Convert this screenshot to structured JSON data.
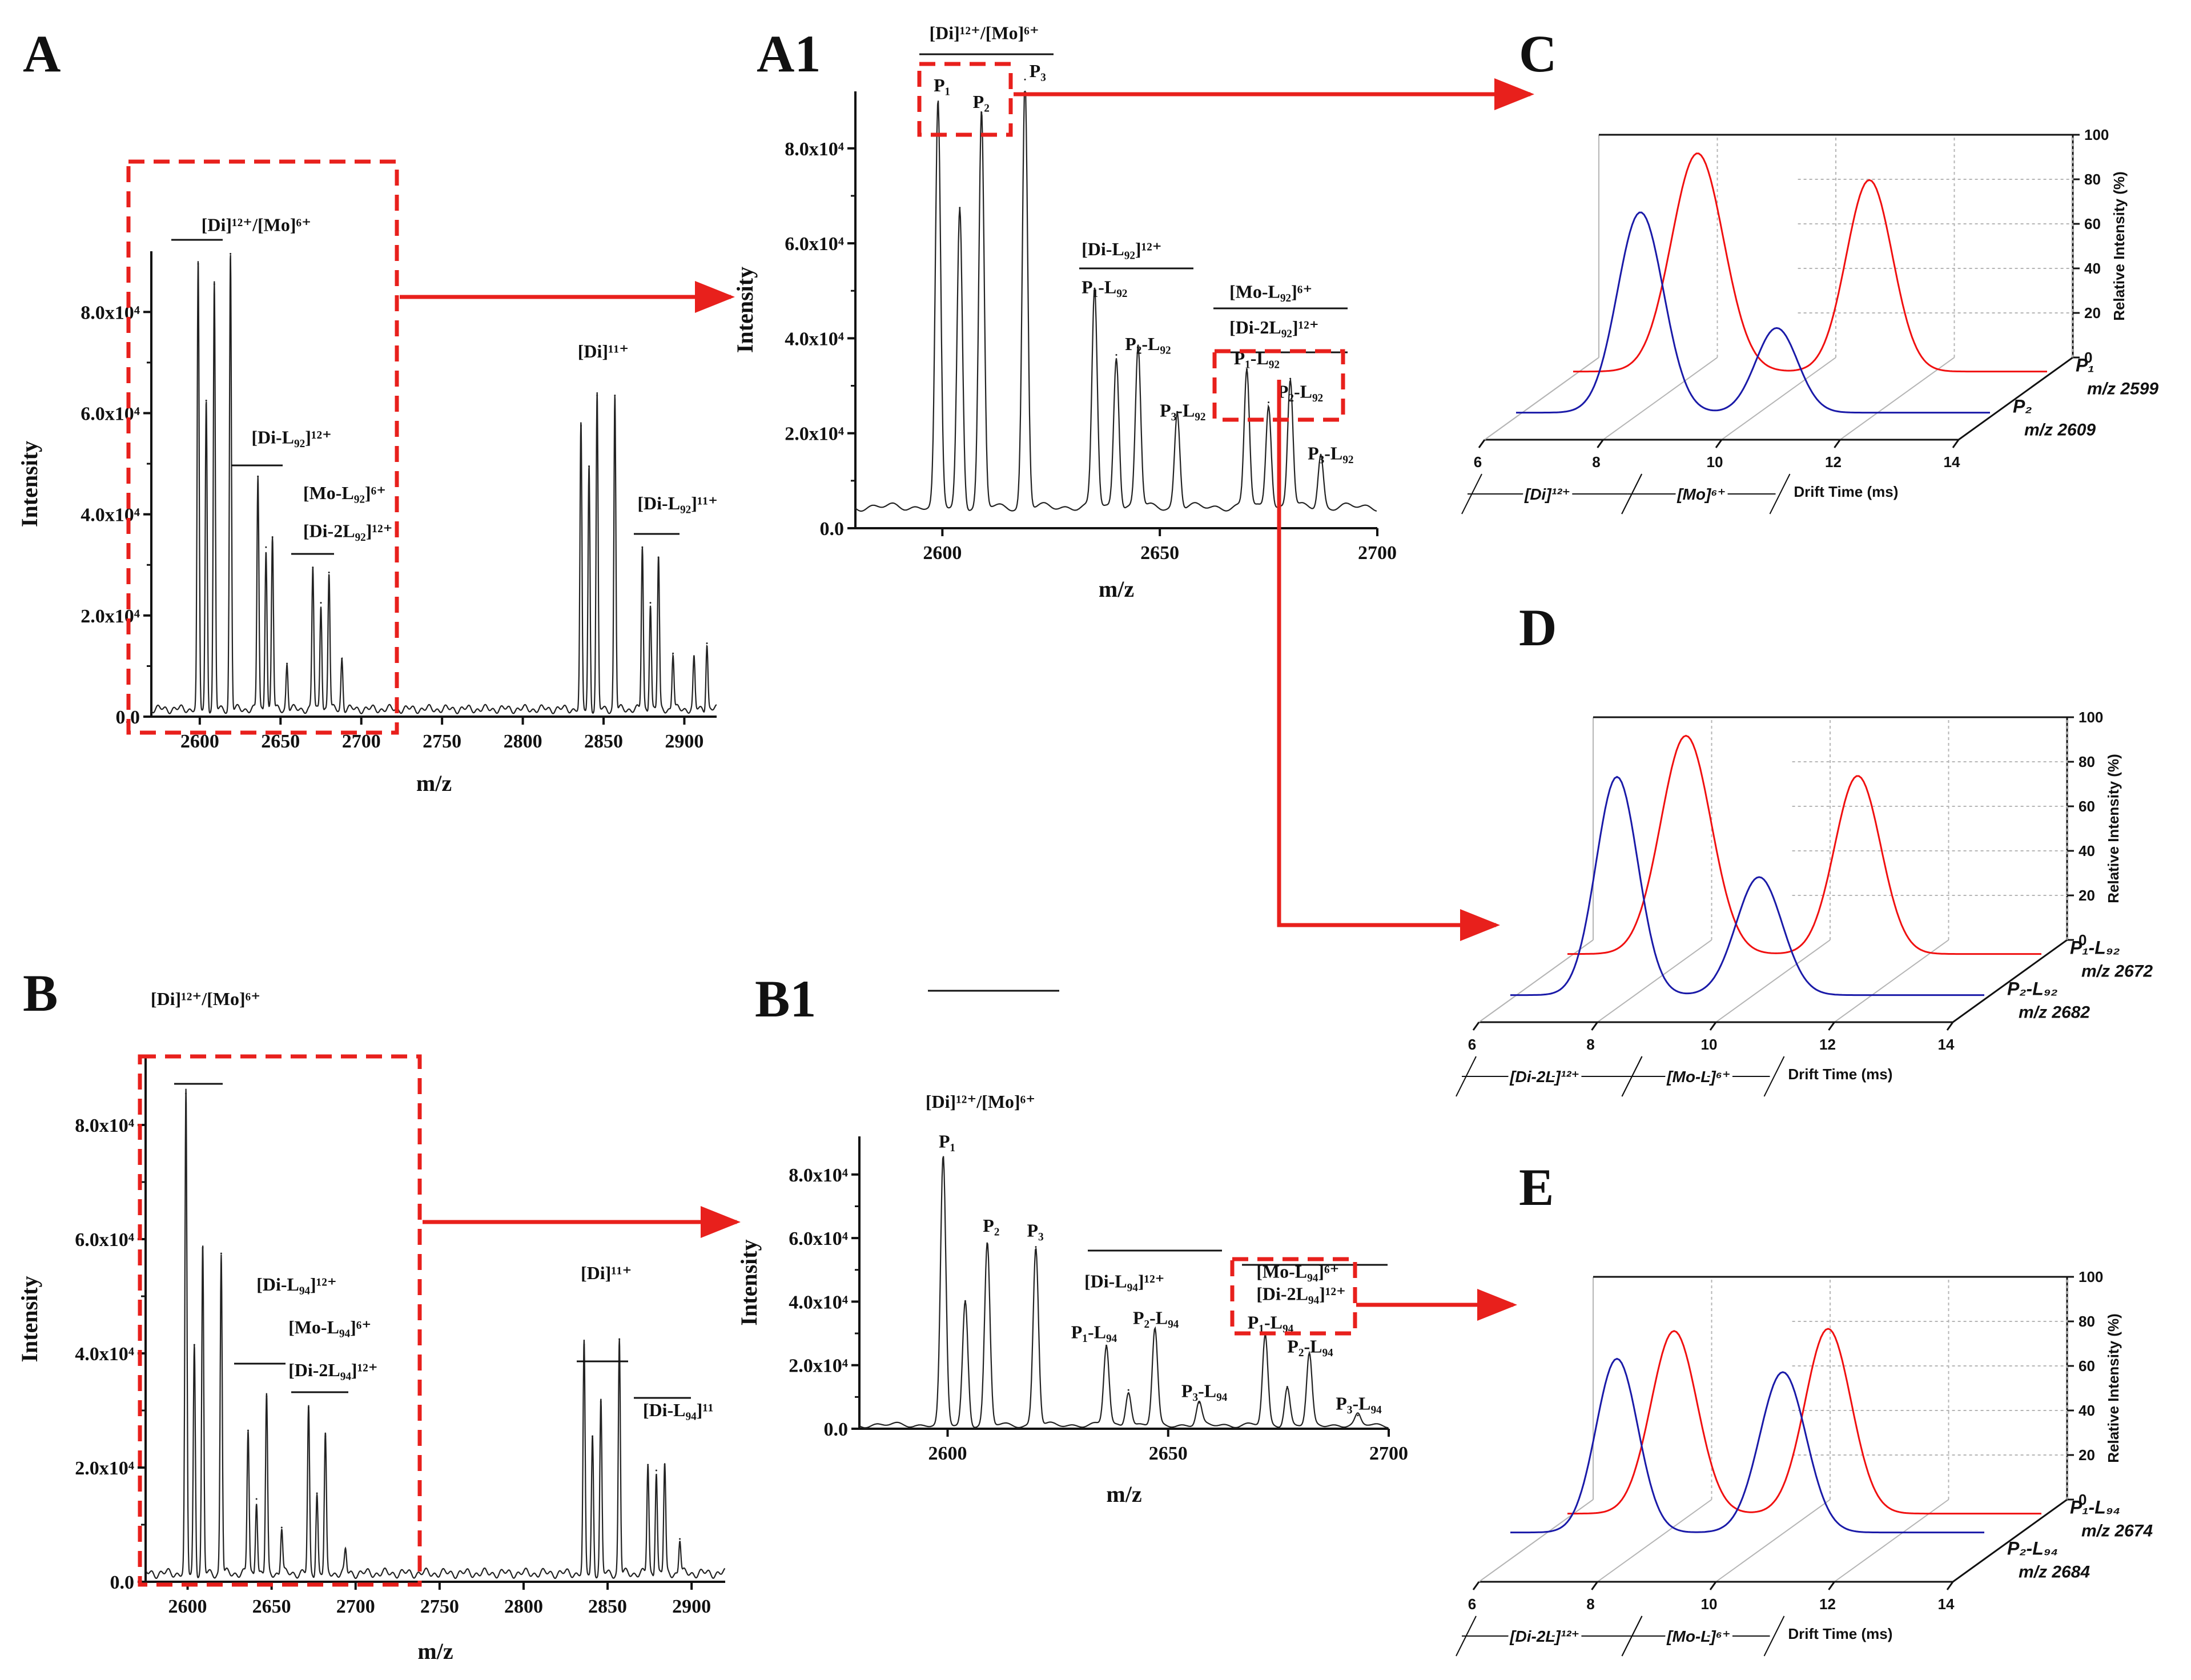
{
  "figure": {
    "colors": {
      "red": "#f01010",
      "blue": "#1a1aa8",
      "spectrum": "#222222",
      "axis": "#111111",
      "grid": "#b5b5b5",
      "highlight_box": "#e8201c",
      "arrow": "#e8201c"
    }
  },
  "chart_data": [
    {
      "id": "A",
      "type": "line",
      "panel_letter": "A",
      "xlabel": "m/z",
      "ylabel": "Intensity",
      "xlim": [
        2570,
        2920
      ],
      "ylim": [
        0,
        92000
      ],
      "xticks": [
        "2600",
        "2650",
        "2700",
        "2750",
        "2800",
        "2850",
        "2900"
      ],
      "yticks": [
        "0.0",
        "2.0x10⁴",
        "4.0x10⁴",
        "6.0x10⁴",
        "8.0x10⁴"
      ],
      "baseline": 1500,
      "peaks": [
        [
          2599,
          88000
        ],
        [
          2604,
          61000
        ],
        [
          2609,
          84000
        ],
        [
          2619,
          90000
        ],
        [
          2636,
          46000
        ],
        [
          2641,
          32000
        ],
        [
          2645,
          34000
        ],
        [
          2654,
          9000
        ],
        [
          2670,
          28000
        ],
        [
          2675,
          21000
        ],
        [
          2680,
          27000
        ],
        [
          2688,
          10000
        ],
        [
          2836,
          56000
        ],
        [
          2841,
          48000
        ],
        [
          2846,
          62000
        ],
        [
          2857,
          62000
        ],
        [
          2874,
          32000
        ],
        [
          2879,
          21000
        ],
        [
          2884,
          30000
        ],
        [
          2893,
          11000
        ],
        [
          2906,
          10000
        ],
        [
          2914,
          13000
        ]
      ],
      "annotations": [
        {
          "text": "[Di]¹²⁺/[Mo]⁶⁺",
          "x": 2601,
          "y": 96000
        },
        {
          "text": "[Di-L₉₂]¹²⁺",
          "x": 2632,
          "y": 54000
        },
        {
          "text": "[Mo-L₉₂]⁶⁺",
          "x": 2664,
          "y": 43000
        },
        {
          "text": "[Di-2L₉₂]¹²⁺",
          "x": 2664,
          "y": 35500
        },
        {
          "text": "[Di]¹¹⁺",
          "x": 2834,
          "y": 71000
        },
        {
          "text": "[Di-L₉₂]¹¹⁺",
          "x": 2871,
          "y": 41000
        }
      ]
    },
    {
      "id": "A1",
      "type": "line",
      "panel_letter": "A1",
      "xlabel": "m/z",
      "ylabel": "Intensity",
      "xlim": [
        2580,
        2700
      ],
      "ylim": [
        0,
        92000
      ],
      "xticks": [
        "2600",
        "2650",
        "2700"
      ],
      "yticks": [
        "0.0",
        "2.0x10⁴",
        "4.0x10⁴",
        "6.0x10⁴",
        "8.0x10⁴"
      ],
      "baseline": 4500,
      "peaks": [
        [
          2599,
          85000
        ],
        [
          2604,
          63000
        ],
        [
          2609,
          83000
        ],
        [
          2619,
          90000
        ],
        [
          2635,
          46000
        ],
        [
          2640,
          32000
        ],
        [
          2645,
          34000
        ],
        [
          2654,
          20000
        ],
        [
          2670,
          29000
        ],
        [
          2675,
          22000
        ],
        [
          2680,
          27000
        ],
        [
          2687,
          11000
        ]
      ],
      "annotations": [
        {
          "text": "[Di]¹²⁺/[Mo]⁶⁺",
          "x": 2597,
          "y": 103000
        },
        {
          "text": "P₁",
          "x": 2598,
          "y": 92000
        },
        {
          "text": "P₂",
          "x": 2607,
          "y": 88500
        },
        {
          "text": "P₃",
          "x": 2620,
          "y": 95000
        },
        {
          "text": "[Di-L₉₂]¹²⁺",
          "x": 2632,
          "y": 57500
        },
        {
          "text": "P₁-L₉₂",
          "x": 2632,
          "y": 49500
        },
        {
          "text": "P₂-L₉₂",
          "x": 2642,
          "y": 37500
        },
        {
          "text": "P₃-L₉₂",
          "x": 2650,
          "y": 23500
        },
        {
          "text": "[Mo-L₉₂]⁶⁺",
          "x": 2666,
          "y": 48500
        },
        {
          "text": "[Di-2L₉₂]¹²⁺",
          "x": 2666,
          "y": 41000
        },
        {
          "text": "P₁-L₉₂",
          "x": 2667,
          "y": 34500
        },
        {
          "text": "P₂-L₉₂",
          "x": 2677,
          "y": 27500
        },
        {
          "text": "P₃-L₉₂",
          "x": 2684,
          "y": 14500
        }
      ]
    },
    {
      "id": "B",
      "type": "line",
      "panel_letter": "B",
      "xlabel": "m/z",
      "ylabel": "Intensity",
      "xlim": [
        2575,
        2920
      ],
      "ylim": [
        0,
        92000
      ],
      "xticks": [
        "2600",
        "2650",
        "2700",
        "2750",
        "2800",
        "2850",
        "2900"
      ],
      "yticks": [
        "0.0",
        "2.0x10⁴",
        "4.0x10⁴",
        "6.0x10⁴",
        "8.0x10⁴"
      ],
      "baseline": 1500,
      "peaks": [
        [
          2599,
          84000
        ],
        [
          2604,
          40000
        ],
        [
          2609,
          57000
        ],
        [
          2620,
          56000
        ],
        [
          2636,
          25000
        ],
        [
          2641,
          13000
        ],
        [
          2647,
          31000
        ],
        [
          2656,
          8000
        ],
        [
          2672,
          29000
        ],
        [
          2677,
          14000
        ],
        [
          2682,
          24000
        ],
        [
          2694,
          4000
        ],
        [
          2836,
          40000
        ],
        [
          2841,
          24000
        ],
        [
          2846,
          30000
        ],
        [
          2857,
          41000
        ],
        [
          2874,
          19000
        ],
        [
          2879,
          18000
        ],
        [
          2884,
          19000
        ],
        [
          2893,
          6000
        ]
      ],
      "annotations": [
        {
          "text": "[Di]¹²⁺/[Mo]⁶⁺",
          "x": 2578,
          "y": 101000
        },
        {
          "text": "[Di-L₉₄]¹²⁺",
          "x": 2641,
          "y": 51000
        },
        {
          "text": "[Mo-L₉₄]⁶⁺",
          "x": 2660,
          "y": 43500
        },
        {
          "text": "[Di-2L₉₄]¹²⁺",
          "x": 2660,
          "y": 36000
        },
        {
          "text": "[Di]¹¹⁺",
          "x": 2834,
          "y": 53000
        },
        {
          "text": "[Di-L₉₄]¹¹",
          "x": 2871,
          "y": 29000
        }
      ]
    },
    {
      "id": "B1",
      "type": "line",
      "panel_letter": "B1",
      "xlabel": "m/z",
      "ylabel": "Intensity",
      "xlim": [
        2580,
        2700
      ],
      "ylim": [
        0,
        92000
      ],
      "xticks": [
        "2600",
        "2650",
        "2700"
      ],
      "yticks": [
        "0.0",
        "2.0x10⁴",
        "4.0x10⁴",
        "6.0x10⁴",
        "8.0x10⁴"
      ],
      "baseline": 1200,
      "peaks": [
        [
          2599,
          84000
        ],
        [
          2604,
          39000
        ],
        [
          2609,
          57000
        ],
        [
          2620,
          56000
        ],
        [
          2636,
          25000
        ],
        [
          2641,
          11000
        ],
        [
          2647,
          30000
        ],
        [
          2657,
          7000
        ],
        [
          2672,
          28000
        ],
        [
          2677,
          12000
        ],
        [
          2682,
          22000
        ],
        [
          2693,
          3000
        ]
      ],
      "annotations": [
        {
          "text": "[Di]¹²⁺/[Mo]⁶⁺",
          "x": 2595,
          "y": 101000
        },
        {
          "text": "P₁",
          "x": 2598,
          "y": 88500
        },
        {
          "text": "P₂",
          "x": 2608,
          "y": 62000
        },
        {
          "text": "P₃",
          "x": 2618,
          "y": 60500
        },
        {
          "text": "[Di-L₉₄]¹²⁺",
          "x": 2631,
          "y": 44500
        },
        {
          "text": "P₂-L₉₄",
          "x": 2642,
          "y": 33000
        },
        {
          "text": "P₁-L₉₄",
          "x": 2628,
          "y": 28500
        },
        {
          "text": "P₃-L₉₄",
          "x": 2653,
          "y": 10000
        },
        {
          "text": "[Mo-L₉₄]⁶⁺",
          "x": 2670,
          "y": 47500
        },
        {
          "text": "[Di-2L₉₄]¹²⁺",
          "x": 2670,
          "y": 40500
        },
        {
          "text": "P₁-L₉₄",
          "x": 2668,
          "y": 31500
        },
        {
          "text": "P₂-L₉₄",
          "x": 2677,
          "y": 24000
        },
        {
          "text": "P₃-L₉₄",
          "x": 2688,
          "y": 6000
        }
      ]
    },
    {
      "id": "C",
      "type": "line",
      "panel_letter": "C",
      "xlabel": "Drift Time (ms)",
      "ylabel": "Relative Intensity (%)",
      "xlim": [
        6,
        14
      ],
      "ylim": [
        0,
        100
      ],
      "xticks": [
        "6",
        "8",
        "10",
        "12",
        "14"
      ],
      "yticks": [
        "0",
        "20",
        "40",
        "60",
        "80",
        "100"
      ],
      "series": [
        {
          "name": "P₁",
          "mz": "m/z 2599",
          "color": "red",
          "baseline": 2,
          "peaks": [
            [
              8.1,
              98,
              0.62
            ],
            [
              11.0,
              86,
              0.55
            ]
          ]
        },
        {
          "name": "P₂",
          "mz": "m/z 2609",
          "color": "blue",
          "baseline": 2,
          "peaks": [
            [
              8.1,
              90,
              0.55
            ],
            [
              10.4,
              38,
              0.5
            ]
          ]
        }
      ],
      "regions": [
        {
          "text": "[Di]¹²⁺",
          "x0": 6.0,
          "x1": 8.7
        },
        {
          "text": "[Mo]⁶⁺",
          "x0": 8.7,
          "x1": 11.2
        }
      ]
    },
    {
      "id": "D",
      "type": "line",
      "panel_letter": "D",
      "xlabel": "Drift Time (ms)",
      "ylabel": "Relative Intensity (%)",
      "xlim": [
        6,
        14
      ],
      "ylim": [
        0,
        100
      ],
      "xticks": [
        "6",
        "8",
        "10",
        "12",
        "14"
      ],
      "yticks": [
        "0",
        "20",
        "40",
        "60",
        "80",
        "100"
      ],
      "series": [
        {
          "name": "P₁-L₉₂",
          "mz": "m/z 2672",
          "color": "red",
          "baseline": 2,
          "peaks": [
            [
              8.0,
              98,
              0.6
            ],
            [
              10.9,
              80,
              0.55
            ]
          ]
        },
        {
          "name": "P₂-L₉₂",
          "mz": "m/z 2682",
          "color": "blue",
          "baseline": 2,
          "peaks": [
            [
              7.8,
              98,
              0.5
            ],
            [
              10.2,
              53,
              0.55
            ]
          ]
        }
      ],
      "regions": [
        {
          "text": "[Di-2L]¹²⁺",
          "x0": 6.0,
          "x1": 8.8
        },
        {
          "text": "[Mo-L]⁶⁺",
          "x0": 8.8,
          "x1": 11.2
        }
      ]
    },
    {
      "id": "E",
      "type": "line",
      "panel_letter": "E",
      "xlabel": "Drift Time (ms)",
      "ylabel": "Relative Intensity (%)",
      "xlim": [
        6,
        14
      ],
      "ylim": [
        0,
        100
      ],
      "xticks": [
        "6",
        "8",
        "10",
        "12",
        "14"
      ],
      "yticks": [
        "0",
        "20",
        "40",
        "60",
        "80",
        "100"
      ],
      "series": [
        {
          "name": "P₁-L₉₄",
          "mz": "m/z 2674",
          "color": "red",
          "baseline": 2,
          "peaks": [
            [
              7.8,
              82,
              0.55
            ],
            [
              10.4,
              83,
              0.55
            ]
          ]
        },
        {
          "name": "P₂-L₉₄",
          "mz": "m/z 2684",
          "color": "blue",
          "baseline": 12,
          "peaks": [
            [
              7.8,
              78,
              0.5
            ],
            [
              10.6,
              72,
              0.55
            ]
          ]
        }
      ],
      "regions": [
        {
          "text": "[Di-2L]¹²⁺",
          "x0": 6.0,
          "x1": 8.8
        },
        {
          "text": "[Mo-L]⁶⁺",
          "x0": 8.8,
          "x1": 11.2
        }
      ]
    }
  ]
}
